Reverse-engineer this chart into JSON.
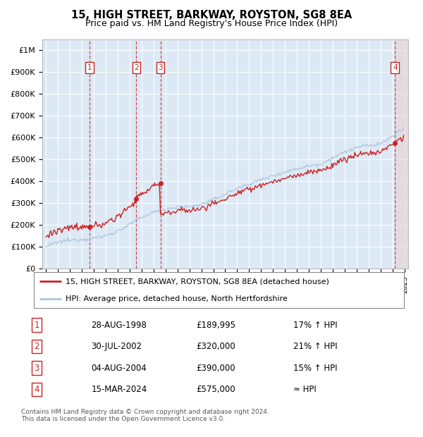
{
  "title": "15, HIGH STREET, BARKWAY, ROYSTON, SG8 8EA",
  "subtitle": "Price paid vs. HM Land Registry's House Price Index (HPI)",
  "legend_line1": "15, HIGH STREET, BARKWAY, ROYSTON, SG8 8EA (detached house)",
  "legend_line2": "HPI: Average price, detached house, North Hertfordshire",
  "footer": "Contains HM Land Registry data © Crown copyright and database right 2024.\nThis data is licensed under the Open Government Licence v3.0.",
  "transactions": [
    {
      "num": 1,
      "date": "28-AUG-1998",
      "price": 189995,
      "pct": "17%",
      "dir": "↑",
      "year": 1998.65
    },
    {
      "num": 2,
      "date": "30-JUL-2002",
      "price": 320000,
      "pct": "21%",
      "dir": "↑",
      "year": 2002.57
    },
    {
      "num": 3,
      "date": "04-AUG-2004",
      "price": 390000,
      "pct": "15%",
      "dir": "↑",
      "year": 2004.58
    },
    {
      "num": 4,
      "date": "15-MAR-2024",
      "price": 575000,
      "pct": "≈",
      "dir": "",
      "year": 2024.2
    }
  ],
  "hpi_color": "#aac4e0",
  "price_color": "#cc2222",
  "bg_color": "#dce9f5",
  "grid_color": "#ffffff",
  "ylim_max": 1000000,
  "yticks": [
    0,
    100000,
    200000,
    300000,
    400000,
    500000,
    600000,
    700000,
    800000,
    900000,
    1000000
  ],
  "ytick_labels": [
    "£0",
    "£100K",
    "£200K",
    "£300K",
    "£400K",
    "£500K",
    "£600K",
    "£700K",
    "£800K",
    "£900K",
    "£1M"
  ],
  "xlim_start": 1994.7,
  "xlim_end": 2025.3,
  "xticks": [
    1995,
    1996,
    1997,
    1998,
    1999,
    2000,
    2001,
    2002,
    2003,
    2004,
    2005,
    2006,
    2007,
    2008,
    2009,
    2010,
    2011,
    2012,
    2013,
    2014,
    2015,
    2016,
    2017,
    2018,
    2019,
    2020,
    2021,
    2022,
    2023,
    2024,
    2025
  ]
}
